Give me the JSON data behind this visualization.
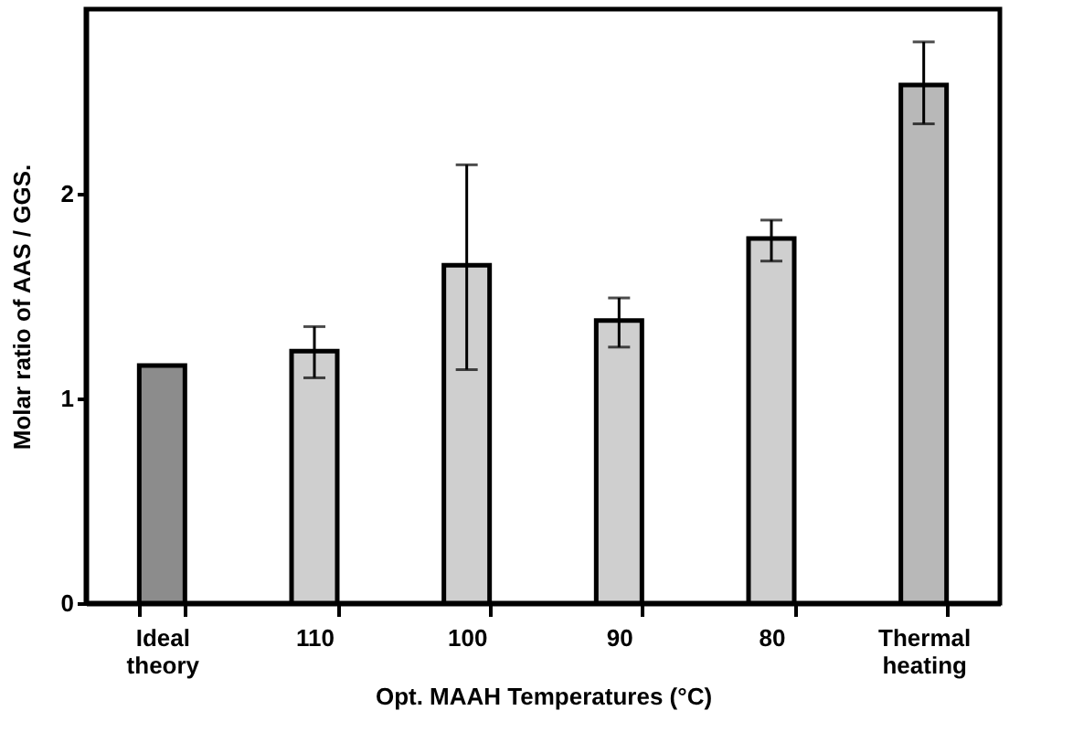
{
  "chart_data": {
    "type": "bar",
    "categories": [
      "Ideal theory",
      "110",
      "100",
      "90",
      "80",
      "Thermal heating"
    ],
    "values": [
      1.16,
      1.23,
      1.65,
      1.38,
      1.78,
      2.53
    ],
    "colors": [
      "#8c8c8c",
      "#cfcfcf",
      "#cfcfcf",
      "#cfcfcf",
      "#cfcfcf",
      "#b8b8b8"
    ],
    "errors": [
      null,
      [
        1.1,
        1.35
      ],
      [
        1.14,
        2.14
      ],
      [
        1.25,
        1.49
      ],
      [
        1.67,
        1.87
      ],
      [
        2.34,
        2.74
      ]
    ],
    "ylabel": "Molar  ratio of AAS / GGS.",
    "xlabel": "Opt. MAAH Temperatures (°C)",
    "ylim": [
      0,
      2.9
    ],
    "yticks": [
      0,
      1,
      2
    ],
    "grid": false
  }
}
